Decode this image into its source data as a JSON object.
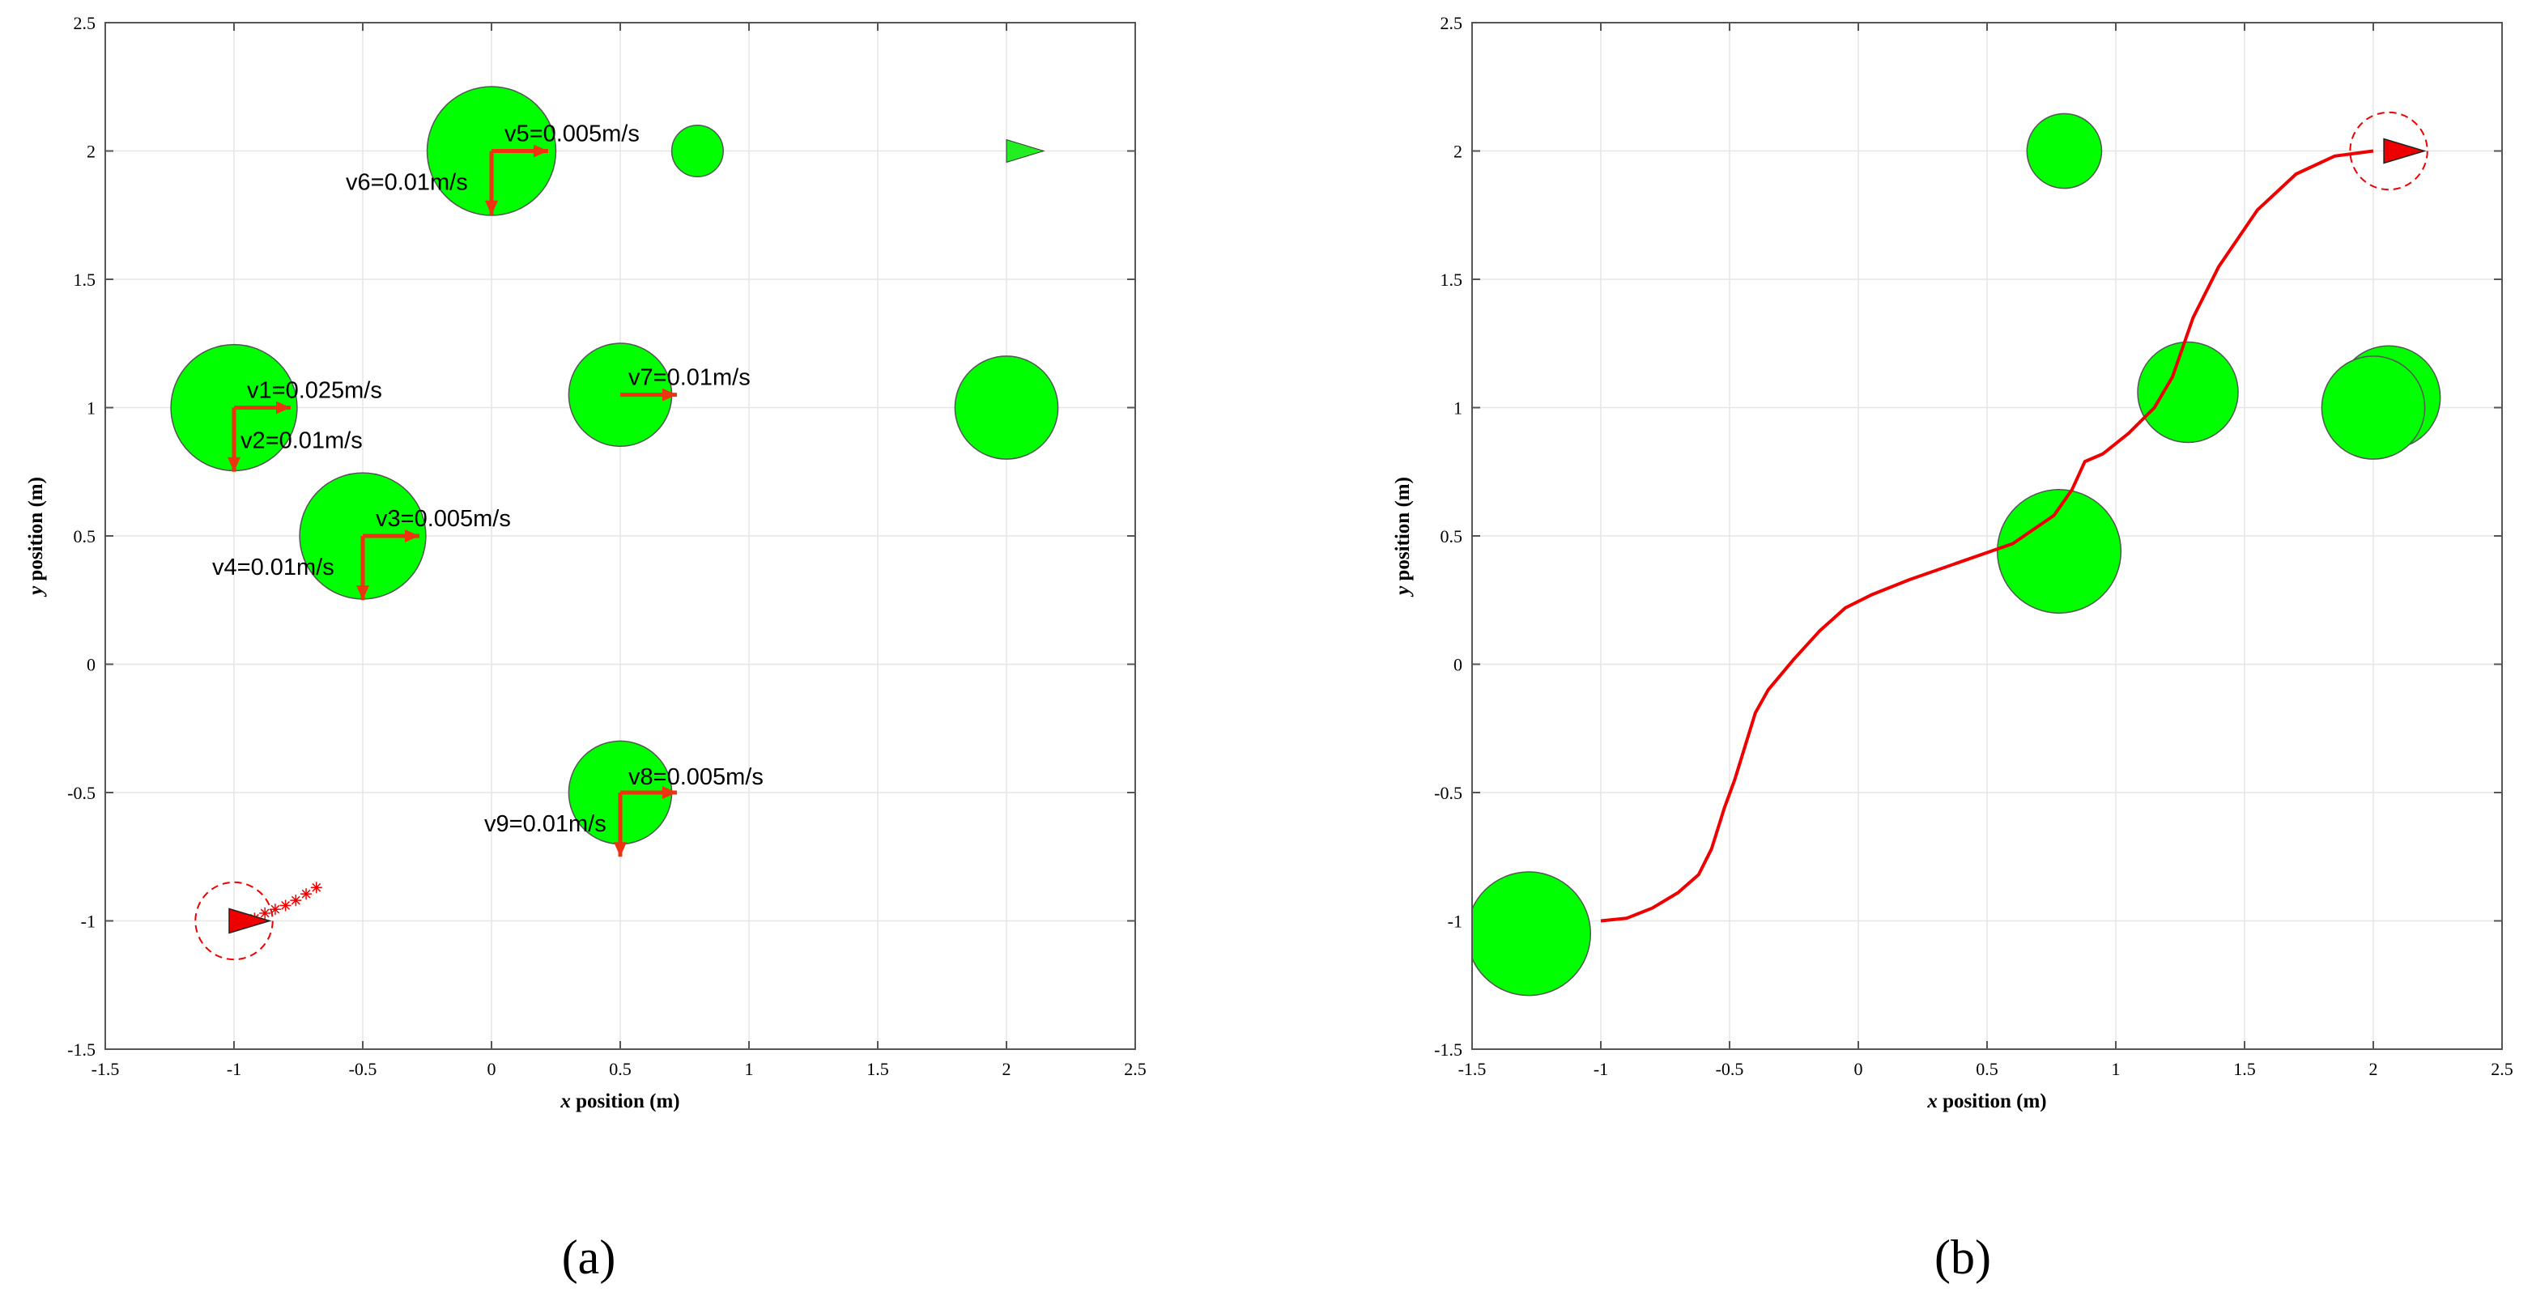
{
  "colors": {
    "obstacle": "#00ff00",
    "obstacle_edge": "#555555",
    "path": "#ee0000",
    "arrow": "#ee3311",
    "robot": "#ee0000",
    "goal_marker": "#22ee22",
    "grid": "#e6e6e6",
    "axes": "#555555"
  },
  "chart_data": [
    {
      "type": "scatter",
      "panel_label": "(a)",
      "xlabel_var": "x",
      "xlabel_rest": " position (m)",
      "ylabel_var": "y",
      "ylabel_rest": " position (m)",
      "xlim": [
        -1.5,
        2.5
      ],
      "ylim": [
        -1.5,
        2.5
      ],
      "xticks": [
        "-1.5",
        "-1",
        "-0.5",
        "0",
        "0.5",
        "1",
        "1.5",
        "2",
        "2.5"
      ],
      "yticks": [
        "-1.5",
        "-1",
        "-0.5",
        "0",
        "0.5",
        "1",
        "1.5",
        "2",
        "2.5"
      ],
      "grid": true,
      "obstacles": [
        {
          "x": 0.0,
          "y": 2.0,
          "r": 0.25
        },
        {
          "x": 0.8,
          "y": 2.0,
          "r": 0.1
        },
        {
          "x": -1.0,
          "y": 1.0,
          "r": 0.245
        },
        {
          "x": 0.5,
          "y": 1.05,
          "r": 0.2
        },
        {
          "x": 2.0,
          "y": 1.0,
          "r": 0.2
        },
        {
          "x": -0.5,
          "y": 0.5,
          "r": 0.245
        },
        {
          "x": 0.5,
          "y": -0.5,
          "r": 0.2
        }
      ],
      "velocity_arrows": [
        {
          "label": "v1=0.025m/s",
          "x": -1.0,
          "y": 1.0,
          "dx": 0.22,
          "dy": 0.0
        },
        {
          "label": "v2=0.01m/s",
          "x": -1.0,
          "y": 1.0,
          "dx": 0.0,
          "dy": -0.25
        },
        {
          "label": "v3=0.005m/s",
          "x": -0.5,
          "y": 0.5,
          "dx": 0.22,
          "dy": 0.0
        },
        {
          "label": "v4=0.01m/s",
          "x": -0.5,
          "y": 0.5,
          "dx": 0.0,
          "dy": -0.25
        },
        {
          "label": "v5=0.005m/s",
          "x": 0.0,
          "y": 2.0,
          "dx": 0.22,
          "dy": 0.0
        },
        {
          "label": "v6=0.01m/s",
          "x": 0.0,
          "y": 2.0,
          "dx": 0.0,
          "dy": -0.25
        },
        {
          "label": "v7=0.01m/s",
          "x": 0.5,
          "y": 1.05,
          "dx": 0.22,
          "dy": 0.0
        },
        {
          "label": "v8=0.005m/s",
          "x": 0.5,
          "y": -0.5,
          "dx": 0.22,
          "dy": 0.0
        },
        {
          "label": "v9=0.01m/s",
          "x": 0.5,
          "y": -0.5,
          "dx": 0.0,
          "dy": -0.25
        }
      ],
      "robot": {
        "x": -1.0,
        "y": -1.0,
        "heading_deg": 0,
        "safety_radius": 0.15
      },
      "goal": {
        "x": 2.0,
        "y": 2.0
      },
      "trail": [
        {
          "x": -0.92,
          "y": -0.99
        },
        {
          "x": -0.88,
          "y": -0.97
        },
        {
          "x": -0.84,
          "y": -0.955
        },
        {
          "x": -0.8,
          "y": -0.94
        },
        {
          "x": -0.76,
          "y": -0.92
        },
        {
          "x": -0.72,
          "y": -0.895
        },
        {
          "x": -0.68,
          "y": -0.87
        }
      ]
    },
    {
      "type": "line",
      "panel_label": "(b)",
      "xlabel_var": "x",
      "xlabel_rest": " position (m)",
      "ylabel_var": "y",
      "ylabel_rest": " position (m)",
      "xlim": [
        -1.5,
        2.5
      ],
      "ylim": [
        -1.5,
        2.5
      ],
      "xticks": [
        "-1.5",
        "-1",
        "-0.5",
        "0",
        "0.5",
        "1",
        "1.5",
        "2",
        "2.5"
      ],
      "yticks": [
        "-1.5",
        "-1",
        "-0.5",
        "0",
        "0.5",
        "1",
        "1.5",
        "2",
        "2.5"
      ],
      "grid": true,
      "obstacles": [
        {
          "x": -1.28,
          "y": -1.05,
          "r": 0.24
        },
        {
          "x": 0.8,
          "y": 2.0,
          "r": 0.145
        },
        {
          "x": 1.28,
          "y": 1.06,
          "r": 0.195
        },
        {
          "x": 2.06,
          "y": 1.04,
          "r": 0.2
        },
        {
          "x": 2.0,
          "y": 1.0,
          "r": 0.2
        },
        {
          "x": 0.78,
          "y": 0.44,
          "r": 0.24
        }
      ],
      "robot": {
        "x": 2.06,
        "y": 2.0,
        "heading_deg": 0,
        "safety_radius": 0.15
      },
      "path": [
        {
          "x": -1.0,
          "y": -1.0
        },
        {
          "x": -0.9,
          "y": -0.99
        },
        {
          "x": -0.8,
          "y": -0.95
        },
        {
          "x": -0.7,
          "y": -0.89
        },
        {
          "x": -0.62,
          "y": -0.82
        },
        {
          "x": -0.57,
          "y": -0.72
        },
        {
          "x": -0.52,
          "y": -0.56
        },
        {
          "x": -0.48,
          "y": -0.45
        },
        {
          "x": -0.44,
          "y": -0.32
        },
        {
          "x": -0.4,
          "y": -0.19
        },
        {
          "x": -0.35,
          "y": -0.1
        },
        {
          "x": -0.25,
          "y": 0.02
        },
        {
          "x": -0.15,
          "y": 0.13
        },
        {
          "x": -0.05,
          "y": 0.22
        },
        {
          "x": 0.05,
          "y": 0.27
        },
        {
          "x": 0.2,
          "y": 0.33
        },
        {
          "x": 0.4,
          "y": 0.4
        },
        {
          "x": 0.6,
          "y": 0.47
        },
        {
          "x": 0.76,
          "y": 0.58
        },
        {
          "x": 0.83,
          "y": 0.68
        },
        {
          "x": 0.88,
          "y": 0.79
        },
        {
          "x": 0.95,
          "y": 0.82
        },
        {
          "x": 1.05,
          "y": 0.9
        },
        {
          "x": 1.15,
          "y": 1.0
        },
        {
          "x": 1.22,
          "y": 1.12
        },
        {
          "x": 1.3,
          "y": 1.35
        },
        {
          "x": 1.4,
          "y": 1.55
        },
        {
          "x": 1.55,
          "y": 1.77
        },
        {
          "x": 1.7,
          "y": 1.91
        },
        {
          "x": 1.85,
          "y": 1.98
        },
        {
          "x": 2.0,
          "y": 2.0
        }
      ]
    }
  ]
}
